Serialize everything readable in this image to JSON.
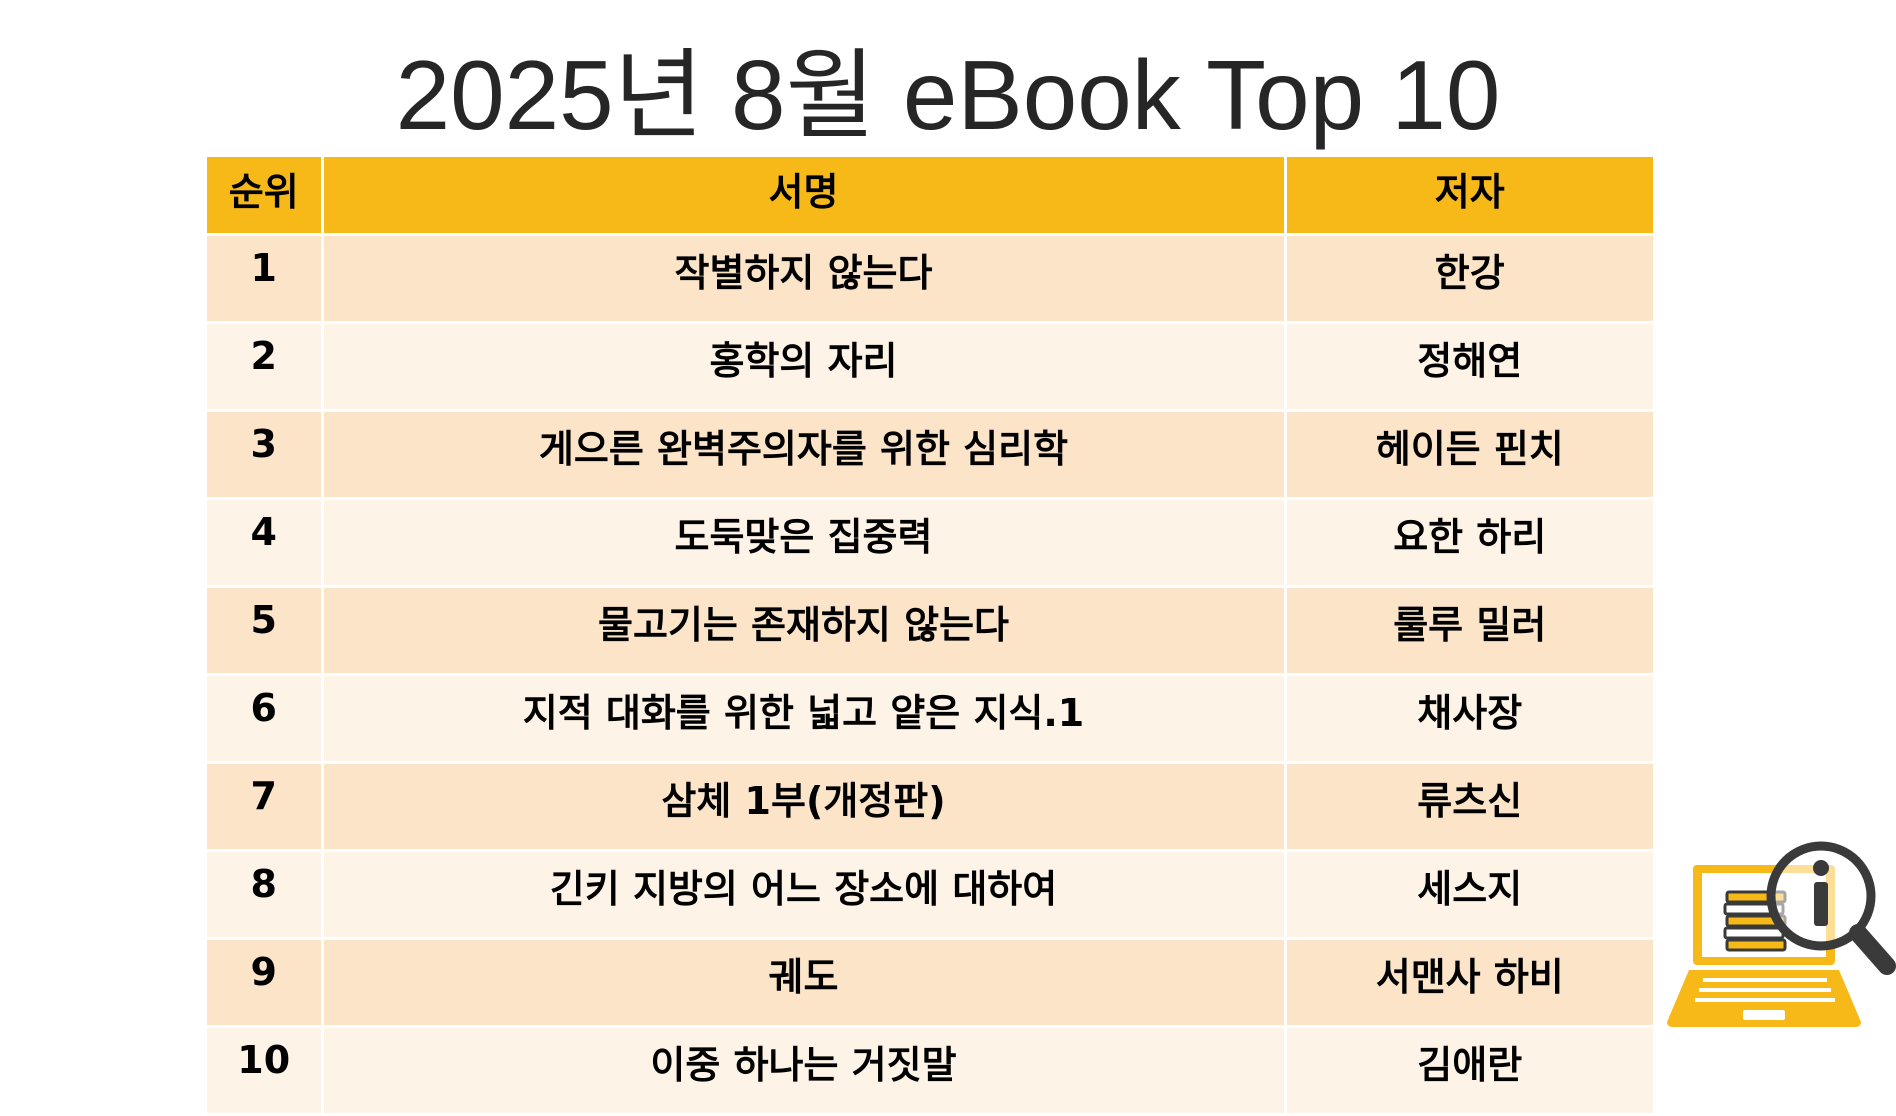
{
  "title": "2025년 8월 eBook Top 10",
  "table": {
    "headers": {
      "rank": "순위",
      "book_title": "서명",
      "author": "저자"
    },
    "rows": [
      {
        "rank": "1",
        "book_title": "작별하지 않는다",
        "author": "한강"
      },
      {
        "rank": "2",
        "book_title": "홍학의 자리",
        "author": "정해연"
      },
      {
        "rank": "3",
        "book_title": "게으른 완벽주의자를 위한 심리학",
        "author": "헤이든 핀치"
      },
      {
        "rank": "4",
        "book_title": "도둑맞은 집중력",
        "author": "요한 하리"
      },
      {
        "rank": "5",
        "book_title": "물고기는 존재하지 않는다",
        "author": "룰루 밀러"
      },
      {
        "rank": "6",
        "book_title": "지적 대화를 위한 넓고 얕은 지식.1",
        "author": "채사장"
      },
      {
        "rank": "7",
        "book_title": "삼체 1부(개정판)",
        "author": "류츠신"
      },
      {
        "rank": "8",
        "book_title": "긴키 지방의 어느 장소에 대하여",
        "author": "세스지"
      },
      {
        "rank": "9",
        "book_title": "궤도",
        "author": "서맨사 하비"
      },
      {
        "rank": "10",
        "book_title": "이중 하나는 거짓말",
        "author": "김애란"
      }
    ]
  },
  "colors": {
    "header_bg": "#f6b918",
    "row_odd_bg": "#fce4c9",
    "row_even_bg": "#fef3e7",
    "icon_gold": "#f6b918",
    "icon_dark": "#3a3a3a"
  },
  "icons": {
    "corner": "laptop-book-magnifier-info-icon"
  }
}
